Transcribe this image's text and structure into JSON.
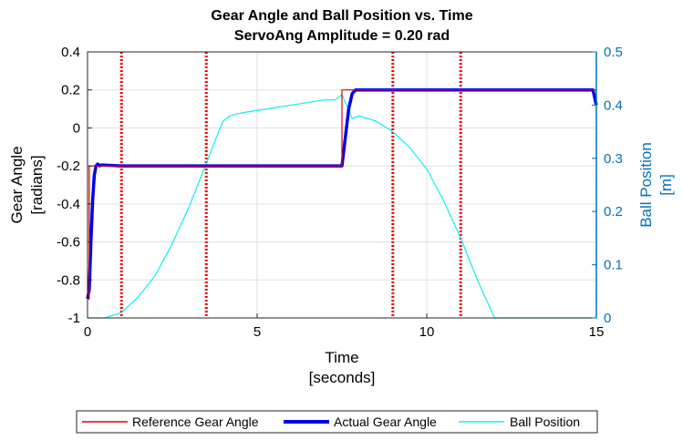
{
  "chart_data": {
    "type": "line",
    "title": "Gear Angle and Ball Position vs. Time",
    "subtitle": "ServoAng Amplitude = 0.20 rad",
    "xlabel": "Time",
    "xlabel_unit": "[seconds]",
    "ylabel_left": "Gear Angle",
    "ylabel_left_unit": "[radians]",
    "ylabel_right": "Ball Position",
    "ylabel_right_unit": "[m]",
    "xlim": [
      0,
      15
    ],
    "ylim_left": [
      -1,
      0.4
    ],
    "ylim_right": [
      0,
      0.5
    ],
    "xticks": [
      0,
      5,
      10,
      15
    ],
    "yticks_left": [
      -1,
      -0.8,
      -0.6,
      -0.4,
      -0.2,
      0,
      0.2,
      0.4
    ],
    "yticks_right": [
      0,
      0.1,
      0.2,
      0.3,
      0.4,
      0.5
    ],
    "grid": true,
    "legend_position": "bottom",
    "colors": {
      "reference": "#dd0000",
      "actual": "#0000ee",
      "ball": "#22eeee",
      "right_axis": "#0072bd",
      "markers": "#ee0000"
    },
    "vertical_markers": [
      1,
      3.5,
      9,
      11
    ],
    "series": [
      {
        "name": "Reference Gear Angle",
        "axis": "left",
        "x": [
          0,
          0.05,
          0.05,
          7.5,
          7.5,
          15
        ],
        "y": [
          -0.9,
          -0.9,
          -0.2,
          -0.2,
          0.2,
          0.2
        ]
      },
      {
        "name": "Actual Gear Angle",
        "axis": "left",
        "x": [
          0,
          0.05,
          0.1,
          0.15,
          0.2,
          0.25,
          0.3,
          0.35,
          0.4,
          1,
          2,
          3,
          4,
          5,
          6,
          7,
          7.4,
          7.5,
          7.6,
          7.7,
          7.8,
          7.9,
          8,
          9,
          10,
          11,
          12,
          13,
          14,
          14.9,
          15
        ],
        "y": [
          -0.9,
          -0.85,
          -0.6,
          -0.38,
          -0.25,
          -0.2,
          -0.19,
          -0.2,
          -0.195,
          -0.2,
          -0.2,
          -0.2,
          -0.2,
          -0.2,
          -0.2,
          -0.2,
          -0.2,
          -0.2,
          -0.05,
          0.1,
          0.18,
          0.2,
          0.2,
          0.2,
          0.2,
          0.2,
          0.2,
          0.2,
          0.2,
          0.2,
          0.12
        ]
      },
      {
        "name": "Ball Position",
        "axis": "right",
        "x": [
          0,
          0.5,
          1,
          1.5,
          2,
          2.5,
          3,
          3.5,
          3.8,
          4,
          4.2,
          4.5,
          5,
          5.5,
          6,
          6.5,
          7,
          7.3,
          7.5,
          7.8,
          8,
          8.5,
          9,
          9.5,
          10,
          10.5,
          11,
          11.5,
          12,
          12.5,
          13,
          14,
          15
        ],
        "y": [
          0,
          0,
          0.01,
          0.04,
          0.08,
          0.14,
          0.21,
          0.29,
          0.34,
          0.37,
          0.38,
          0.385,
          0.39,
          0.395,
          0.4,
          0.405,
          0.41,
          0.41,
          0.42,
          0.375,
          0.38,
          0.37,
          0.35,
          0.32,
          0.28,
          0.22,
          0.15,
          0.07,
          0,
          0,
          0,
          0,
          0
        ]
      }
    ]
  }
}
